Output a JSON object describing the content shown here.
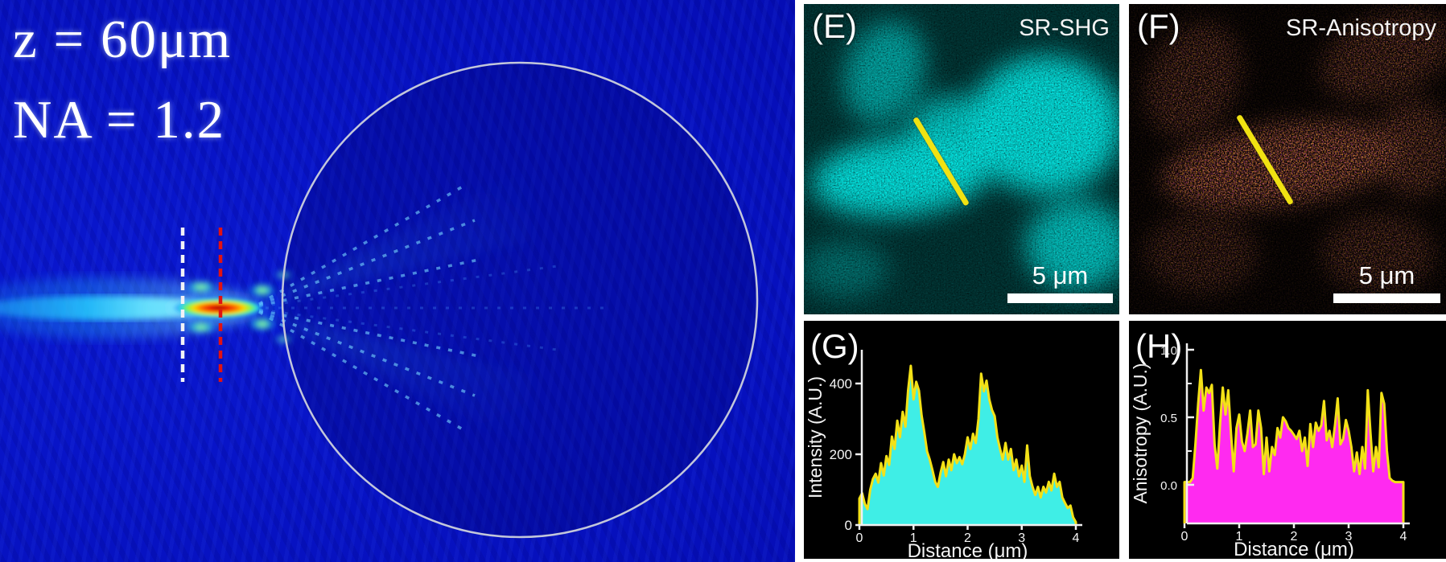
{
  "sim": {
    "line1": "z = 60μm",
    "line2": "NA = 1.2",
    "background_color": "#0712c2",
    "circle_color": "#c3c7da",
    "dash_white_color": "#f2f2f6",
    "dash_red_color": "#e11212",
    "focus_colormap": [
      "#8b0000",
      "#e81200",
      "#ff7000",
      "#ffd800",
      "#86f845",
      "#22d8ea",
      "#1040ff"
    ]
  },
  "panels": {
    "e": {
      "label": "(E)",
      "title": "SR-SHG",
      "scalebar_text": "5 μm",
      "accent_color": "#17e7df",
      "roi_color": "#f0e212"
    },
    "f": {
      "label": "(F)",
      "title": "SR-Anisotropy",
      "scalebar_text": "5 μm",
      "accent_color": "#ff9a28",
      "roi_color": "#f0e212"
    },
    "g": {
      "label": "(G)"
    },
    "h": {
      "label": "(H)"
    }
  },
  "chart_data": [
    {
      "panel": "G",
      "type": "area",
      "title": "",
      "xlabel": "Distance (μm)",
      "ylabel": "Intensity (A.U.)",
      "xlim": [
        0,
        4
      ],
      "ylim": [
        0,
        500
      ],
      "grid": false,
      "legend": "none",
      "xtick_values": [
        0,
        1,
        2,
        3,
        4
      ],
      "xtick_labels": [
        "0",
        "1",
        "2",
        "3",
        "4"
      ],
      "ytick_values": [
        0,
        200,
        400
      ],
      "ytick_labels": [
        "0",
        "200",
        "400"
      ],
      "fill_color": "#3feee6",
      "line_color": "#f3e117",
      "axis_color": "#f0f0f0",
      "x_start": 0,
      "x_step": 0.05,
      "y": [
        75,
        90,
        60,
        45,
        100,
        130,
        145,
        120,
        175,
        140,
        195,
        170,
        250,
        215,
        295,
        248,
        320,
        278,
        380,
        450,
        355,
        405,
        380,
        310,
        262,
        208,
        185,
        155,
        122,
        108,
        148,
        178,
        138,
        185,
        155,
        200,
        175,
        192,
        172,
        200,
        248,
        215,
        258,
        232,
        300,
        428,
        378,
        408,
        355,
        325,
        308,
        248,
        215,
        185,
        232,
        185,
        215,
        155,
        185,
        138,
        168,
        122,
        225,
        138,
        108,
        85,
        108,
        78,
        108,
        92,
        122,
        98,
        145,
        108,
        122,
        78,
        62,
        48,
        55,
        22,
        8
      ]
    },
    {
      "panel": "H",
      "type": "area",
      "title": "",
      "xlabel": "Distance (μm)",
      "ylabel": "Anisotropy (A.U.)",
      "xlim": [
        0,
        4
      ],
      "ylim": [
        0,
        1.0
      ],
      "grid": false,
      "legend": "none",
      "baseline_extends_below_zero": true,
      "xtick_values": [
        0,
        1,
        2,
        3,
        4
      ],
      "xtick_labels": [
        "0",
        "1",
        "2",
        "3",
        "4"
      ],
      "ytick_values": [
        0,
        0.5,
        1.0
      ],
      "ytick_labels": [
        "0.0",
        "0.5",
        "1.0"
      ],
      "y_minor_ticks": [
        0.25,
        0.75
      ],
      "fill_color": "#ff2af0",
      "line_color": "#f3e117",
      "axis_color": "#f0f0f0",
      "x_start": 0,
      "x_step": 0.05,
      "y": [
        0.02,
        0.02,
        0.02,
        0.05,
        0.3,
        0.6,
        0.85,
        0.55,
        0.72,
        0.68,
        0.74,
        0.3,
        0.12,
        0.45,
        0.72,
        0.52,
        0.7,
        0.38,
        0.1,
        0.42,
        0.52,
        0.32,
        0.25,
        0.38,
        0.55,
        0.28,
        0.3,
        0.55,
        0.42,
        0.08,
        0.35,
        0.1,
        0.28,
        0.22,
        0.42,
        0.35,
        0.5,
        0.47,
        0.42,
        0.4,
        0.37,
        0.34,
        0.4,
        0.25,
        0.35,
        0.14,
        0.45,
        0.28,
        0.46,
        0.4,
        0.44,
        0.62,
        0.33,
        0.4,
        0.28,
        0.44,
        0.64,
        0.3,
        0.34,
        0.48,
        0.4,
        0.28,
        0.1,
        0.24,
        0.08,
        0.28,
        0.12,
        0.7,
        0.38,
        0.1,
        0.28,
        0.13,
        0.68,
        0.6,
        0.25,
        0.05,
        0.03,
        0.02,
        0.02,
        0.02,
        0.02
      ]
    }
  ]
}
